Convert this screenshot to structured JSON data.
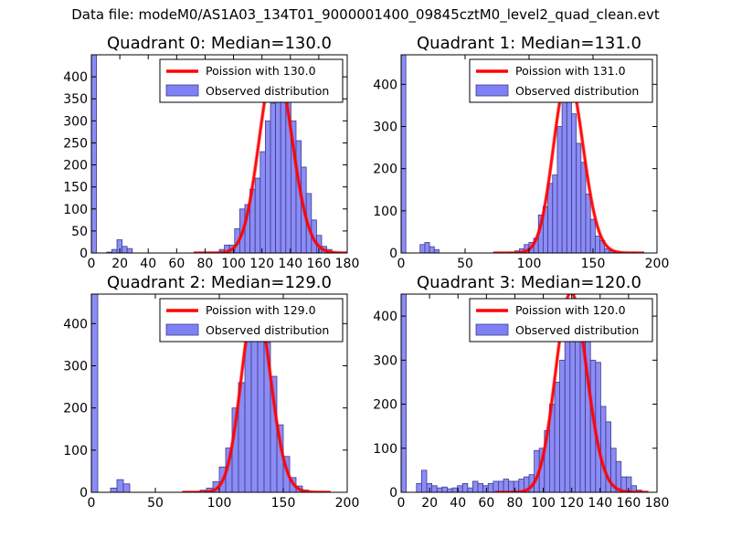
{
  "figure": {
    "suptitle": "Data file: modeM0/AS1A03_134T01_9000001400_09845cztM0_level2_quad_clean.evt"
  },
  "colors": {
    "bar_fill": "#8080f5",
    "bar_edge": "#3d3d8a",
    "poisson_line": "#ff0000",
    "axes": "#000000"
  },
  "legend": {
    "observed_label": "Observed distribution"
  },
  "chart_data": [
    {
      "type": "bar",
      "title": "Quadrant 0: Median=130.0",
      "median": 130.0,
      "line_label": "Poission with 130.0",
      "xlim": [
        0,
        180
      ],
      "ylim": [
        0,
        450
      ],
      "xticks": [
        0,
        20,
        40,
        60,
        80,
        100,
        120,
        140,
        160,
        180
      ],
      "yticks": [
        0,
        50,
        100,
        150,
        200,
        250,
        300,
        350,
        400
      ],
      "bin_width": 3.6,
      "bins": [
        {
          "x": 0,
          "count": 450
        },
        {
          "x": 10.8,
          "count": 2
        },
        {
          "x": 14.4,
          "count": 8
        },
        {
          "x": 18,
          "count": 30
        },
        {
          "x": 21.6,
          "count": 15
        },
        {
          "x": 25.2,
          "count": 10
        },
        {
          "x": 90,
          "count": 8
        },
        {
          "x": 93.6,
          "count": 18
        },
        {
          "x": 97.2,
          "count": 18
        },
        {
          "x": 100.8,
          "count": 55
        },
        {
          "x": 104.4,
          "count": 100
        },
        {
          "x": 108,
          "count": 110
        },
        {
          "x": 111.6,
          "count": 145
        },
        {
          "x": 115.2,
          "count": 170
        },
        {
          "x": 118.8,
          "count": 230
        },
        {
          "x": 122.4,
          "count": 300
        },
        {
          "x": 126,
          "count": 340
        },
        {
          "x": 129.6,
          "count": 380
        },
        {
          "x": 133.2,
          "count": 420
        },
        {
          "x": 136.8,
          "count": 400
        },
        {
          "x": 140.4,
          "count": 300
        },
        {
          "x": 144,
          "count": 255
        },
        {
          "x": 147.6,
          "count": 195
        },
        {
          "x": 151.2,
          "count": 135
        },
        {
          "x": 154.8,
          "count": 75
        },
        {
          "x": 158.4,
          "count": 40
        },
        {
          "x": 162,
          "count": 15
        },
        {
          "x": 165.6,
          "count": 8
        },
        {
          "x": 169.2,
          "count": 2
        }
      ]
    },
    {
      "type": "bar",
      "title": "Quadrant 1: Median=131.0",
      "median": 131.0,
      "line_label": "Poission with 131.0",
      "xlim": [
        0,
        200
      ],
      "ylim": [
        0,
        470
      ],
      "xticks": [
        0,
        50,
        100,
        150,
        200
      ],
      "yticks": [
        0,
        100,
        200,
        300,
        400
      ],
      "bin_width": 3.7,
      "bins": [
        {
          "x": 0,
          "count": 470
        },
        {
          "x": 14.8,
          "count": 20
        },
        {
          "x": 18.5,
          "count": 25
        },
        {
          "x": 22.2,
          "count": 15
        },
        {
          "x": 25.9,
          "count": 8
        },
        {
          "x": 88.8,
          "count": 5
        },
        {
          "x": 92.5,
          "count": 10
        },
        {
          "x": 96.2,
          "count": 20
        },
        {
          "x": 99.9,
          "count": 25
        },
        {
          "x": 103.6,
          "count": 35
        },
        {
          "x": 107.3,
          "count": 90
        },
        {
          "x": 111,
          "count": 110
        },
        {
          "x": 114.7,
          "count": 165
        },
        {
          "x": 118.4,
          "count": 185
        },
        {
          "x": 122.1,
          "count": 300
        },
        {
          "x": 125.8,
          "count": 380
        },
        {
          "x": 129.5,
          "count": 410
        },
        {
          "x": 133.2,
          "count": 330
        },
        {
          "x": 136.9,
          "count": 260
        },
        {
          "x": 140.6,
          "count": 215
        },
        {
          "x": 144.3,
          "count": 140
        },
        {
          "x": 148,
          "count": 80
        },
        {
          "x": 151.7,
          "count": 40
        },
        {
          "x": 155.4,
          "count": 30
        },
        {
          "x": 159.1,
          "count": 10
        },
        {
          "x": 162.8,
          "count": 5
        }
      ]
    },
    {
      "type": "bar",
      "title": "Quadrant 2: Median=129.0",
      "median": 129.0,
      "line_label": "Poission with 129.0",
      "xlim": [
        0,
        200
      ],
      "ylim": [
        0,
        470
      ],
      "xticks": [
        0,
        50,
        100,
        150,
        200
      ],
      "yticks": [
        0,
        100,
        200,
        300,
        400
      ],
      "bin_width": 5,
      "bins": [
        {
          "x": 0,
          "count": 470
        },
        {
          "x": 15,
          "count": 10
        },
        {
          "x": 20,
          "count": 30
        },
        {
          "x": 25,
          "count": 20
        },
        {
          "x": 85,
          "count": 5
        },
        {
          "x": 90,
          "count": 10
        },
        {
          "x": 95,
          "count": 25
        },
        {
          "x": 100,
          "count": 60
        },
        {
          "x": 105,
          "count": 105
        },
        {
          "x": 110,
          "count": 200
        },
        {
          "x": 115,
          "count": 260
        },
        {
          "x": 120,
          "count": 390
        },
        {
          "x": 125,
          "count": 420
        },
        {
          "x": 130,
          "count": 440
        },
        {
          "x": 135,
          "count": 355
        },
        {
          "x": 140,
          "count": 275
        },
        {
          "x": 145,
          "count": 160
        },
        {
          "x": 150,
          "count": 85
        },
        {
          "x": 155,
          "count": 35
        },
        {
          "x": 160,
          "count": 15
        },
        {
          "x": 165,
          "count": 5
        }
      ]
    },
    {
      "type": "bar",
      "title": "Quadrant 3: Median=120.0",
      "median": 120.0,
      "line_label": "Poission with 120.0",
      "xlim": [
        0,
        180
      ],
      "ylim": [
        0,
        450
      ],
      "xticks": [
        0,
        20,
        40,
        60,
        80,
        100,
        120,
        140,
        160,
        180
      ],
      "yticks": [
        0,
        100,
        200,
        300,
        400
      ],
      "bin_width": 3.6,
      "bins": [
        {
          "x": 0,
          "count": 450
        },
        {
          "x": 10.8,
          "count": 20
        },
        {
          "x": 14.4,
          "count": 50
        },
        {
          "x": 18,
          "count": 20
        },
        {
          "x": 21.6,
          "count": 15
        },
        {
          "x": 25.2,
          "count": 10
        },
        {
          "x": 28.8,
          "count": 12
        },
        {
          "x": 32.4,
          "count": 8
        },
        {
          "x": 36,
          "count": 10
        },
        {
          "x": 39.6,
          "count": 15
        },
        {
          "x": 43.2,
          "count": 20
        },
        {
          "x": 46.8,
          "count": 10
        },
        {
          "x": 50.4,
          "count": 25
        },
        {
          "x": 54,
          "count": 20
        },
        {
          "x": 57.6,
          "count": 15
        },
        {
          "x": 61.2,
          "count": 20
        },
        {
          "x": 64.8,
          "count": 25
        },
        {
          "x": 68.4,
          "count": 25
        },
        {
          "x": 72,
          "count": 30
        },
        {
          "x": 75.6,
          "count": 25
        },
        {
          "x": 79.2,
          "count": 25
        },
        {
          "x": 82.8,
          "count": 30
        },
        {
          "x": 86.4,
          "count": 35
        },
        {
          "x": 90,
          "count": 40
        },
        {
          "x": 93.6,
          "count": 95
        },
        {
          "x": 97.2,
          "count": 100
        },
        {
          "x": 100.8,
          "count": 140
        },
        {
          "x": 104.4,
          "count": 200
        },
        {
          "x": 108,
          "count": 250
        },
        {
          "x": 111.6,
          "count": 300
        },
        {
          "x": 115.2,
          "count": 360
        },
        {
          "x": 118.8,
          "count": 390
        },
        {
          "x": 122.4,
          "count": 420
        },
        {
          "x": 126,
          "count": 440
        },
        {
          "x": 129.6,
          "count": 380
        },
        {
          "x": 133.2,
          "count": 300
        },
        {
          "x": 136.8,
          "count": 295
        },
        {
          "x": 140.4,
          "count": 195
        },
        {
          "x": 144,
          "count": 160
        },
        {
          "x": 147.6,
          "count": 100
        },
        {
          "x": 151.2,
          "count": 70
        },
        {
          "x": 154.8,
          "count": 35
        },
        {
          "x": 158.4,
          "count": 35
        },
        {
          "x": 162,
          "count": 15
        },
        {
          "x": 165.6,
          "count": 5
        }
      ]
    }
  ]
}
